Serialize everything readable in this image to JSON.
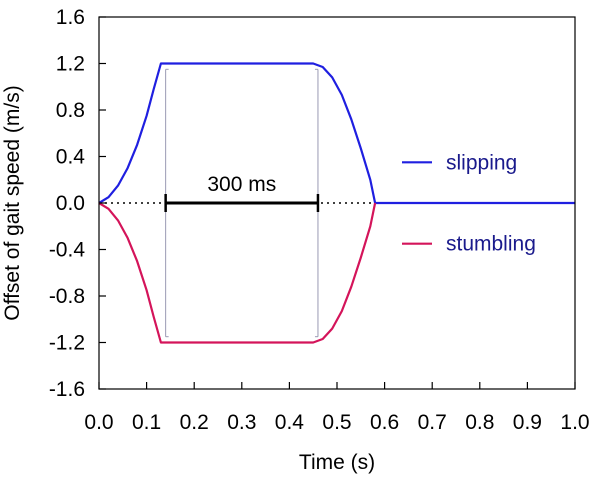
{
  "chart_data": {
    "type": "line",
    "title": "",
    "xlabel": "Time (s)",
    "ylabel": "Offset of gait speed (m/s)",
    "xlim": [
      0.0,
      1.0
    ],
    "ylim": [
      -1.6,
      1.6
    ],
    "x_ticks": [
      "0.0",
      "0.1",
      "0.2",
      "0.3",
      "0.4",
      "0.5",
      "0.6",
      "0.7",
      "0.8",
      "0.9",
      "1.0"
    ],
    "y_ticks": [
      "-1.6",
      "-1.2",
      "-0.8",
      "-0.4",
      "0.0",
      "0.4",
      "0.8",
      "1.2",
      "1.6"
    ],
    "grid": false,
    "legend_position": "right",
    "series": [
      {
        "name": "slipping",
        "color": "#1f1fe0",
        "x": [
          0.0,
          0.02,
          0.04,
          0.06,
          0.08,
          0.1,
          0.115,
          0.13,
          0.2,
          0.3,
          0.4,
          0.45,
          0.47,
          0.49,
          0.51,
          0.53,
          0.55,
          0.57,
          0.58,
          0.6,
          0.8,
          1.0
        ],
        "y": [
          0.0,
          0.05,
          0.15,
          0.3,
          0.5,
          0.75,
          0.98,
          1.2,
          1.2,
          1.2,
          1.2,
          1.2,
          1.17,
          1.08,
          0.93,
          0.72,
          0.47,
          0.2,
          0.0,
          0.0,
          0.0,
          0.0
        ]
      },
      {
        "name": "stumbling",
        "color": "#d4145a",
        "x": [
          0.0,
          0.02,
          0.04,
          0.06,
          0.08,
          0.1,
          0.115,
          0.13,
          0.2,
          0.3,
          0.4,
          0.45,
          0.47,
          0.49,
          0.51,
          0.53,
          0.55,
          0.57,
          0.58
        ],
        "y": [
          0.0,
          -0.05,
          -0.15,
          -0.3,
          -0.5,
          -0.75,
          -0.98,
          -1.2,
          -1.2,
          -1.2,
          -1.2,
          -1.2,
          -1.17,
          -1.08,
          -0.93,
          -0.72,
          -0.47,
          -0.2,
          0.0
        ]
      }
    ],
    "reference_line": {
      "y": 0.0,
      "x_start": 0.0,
      "x_end": 0.58,
      "style": "dotted",
      "color": "#000000"
    },
    "bracket": {
      "x_start": 0.14,
      "x_end": 0.46,
      "y": 0.0,
      "label": "300 ms",
      "color": "#000000"
    },
    "guides": {
      "x": [
        0.14,
        0.46
      ],
      "y_top": 1.15,
      "y_bottom": -1.15,
      "color": "#9a9ab4"
    }
  }
}
